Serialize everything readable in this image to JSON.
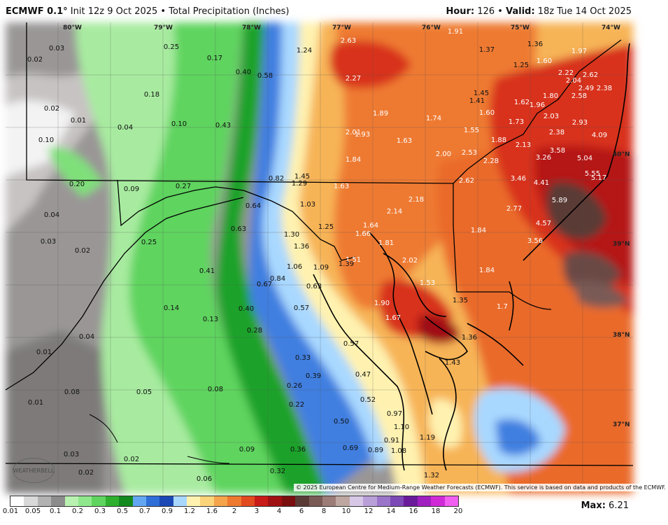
{
  "header": {
    "model": "ECMWF 0.1°",
    "subtitle": "Init 12z 9 Oct 2025 • Total Precipitation (Inches)",
    "hour_label": "Hour:",
    "hour_value": "126",
    "valid_label": "Valid:",
    "valid_value": "18z Tue 14 Oct 2025"
  },
  "longitude_labels": [
    "80°W",
    "79°W",
    "78°W",
    "77°W",
    "76°W",
    "75°W",
    "74°W"
  ],
  "latitude_labels": [
    "40°N",
    "39°N",
    "38°N",
    "37°N"
  ],
  "values": [
    {
      "v": "0.25"
    },
    {
      "v": "0.03"
    },
    {
      "v": "0.02"
    },
    {
      "v": "0.17"
    },
    {
      "v": "0.40"
    },
    {
      "v": "0.58"
    },
    {
      "v": "1.24"
    },
    {
      "v": "2.63"
    },
    {
      "v": "1.91"
    },
    {
      "v": "1.37"
    },
    {
      "v": "1.36"
    },
    {
      "v": "1.97"
    },
    {
      "v": "0.18"
    },
    {
      "v": "2.27"
    },
    {
      "v": "1.25"
    },
    {
      "v": "1.60"
    },
    {
      "v": "2.22"
    },
    {
      "v": "2.62"
    },
    {
      "v": "2.04"
    },
    {
      "v": "2.49"
    },
    {
      "v": "2.38"
    },
    {
      "v": "0.02"
    },
    {
      "v": "1.45"
    },
    {
      "v": "1.41"
    },
    {
      "v": "1.62"
    },
    {
      "v": "1.80"
    },
    {
      "v": "2.58"
    },
    {
      "v": "0.01"
    },
    {
      "v": "0.04"
    },
    {
      "v": "0.10"
    },
    {
      "v": "0.43"
    },
    {
      "v": "1.89"
    },
    {
      "v": "1.74"
    },
    {
      "v": "1.60"
    },
    {
      "v": "1.96"
    },
    {
      "v": "1.73"
    },
    {
      "v": "2.03"
    },
    {
      "v": "2.93"
    },
    {
      "v": "1.55"
    },
    {
      "v": "2.38"
    },
    {
      "v": "2.01"
    },
    {
      "v": "1.93"
    },
    {
      "v": "1.63"
    },
    {
      "v": "1.88"
    },
    {
      "v": "4.09"
    },
    {
      "v": "0.10"
    },
    {
      "v": "2.13"
    },
    {
      "v": "2.00"
    },
    {
      "v": "2.53"
    },
    {
      "v": "3.58"
    },
    {
      "v": "3.26"
    },
    {
      "v": "5.04"
    },
    {
      "v": "1.84"
    },
    {
      "v": "2.28"
    },
    {
      "v": "5.55"
    },
    {
      "v": "0.82"
    },
    {
      "v": "1.45"
    },
    {
      "v": "5.17"
    },
    {
      "v": "0.20"
    },
    {
      "v": "0.09"
    },
    {
      "v": "0.27"
    },
    {
      "v": "1.29"
    },
    {
      "v": "1.63"
    },
    {
      "v": "2.62"
    },
    {
      "v": "3.46"
    },
    {
      "v": "4.41"
    },
    {
      "v": "1.03"
    },
    {
      "v": "2.18"
    },
    {
      "v": "2.77"
    },
    {
      "v": "5.89"
    },
    {
      "v": "0.64"
    },
    {
      "v": "0.04"
    },
    {
      "v": "2.14"
    },
    {
      "v": "1.25"
    },
    {
      "v": "1.64"
    },
    {
      "v": "4.57"
    },
    {
      "v": "0.63"
    },
    {
      "v": "1.30"
    },
    {
      "v": "1.66"
    },
    {
      "v": "1.84"
    },
    {
      "v": "0.03"
    },
    {
      "v": "0.25"
    },
    {
      "v": "1.36"
    },
    {
      "v": "1.81"
    },
    {
      "v": "3.56"
    },
    {
      "v": "0.02"
    },
    {
      "v": "1.51"
    },
    {
      "v": "2.02"
    },
    {
      "v": "1.39"
    },
    {
      "v": "1.06"
    },
    {
      "v": "1.09"
    },
    {
      "v": "0.41"
    },
    {
      "v": "1.84"
    },
    {
      "v": "0.84"
    },
    {
      "v": "1.53"
    },
    {
      "v": "0.67"
    },
    {
      "v": "0.63"
    },
    {
      "v": "1.35"
    },
    {
      "v": "1.90"
    },
    {
      "v": "0.14"
    },
    {
      "v": "0.40"
    },
    {
      "v": "0.57"
    },
    {
      "v": "1.7"
    },
    {
      "v": "0.13"
    },
    {
      "v": "1.67"
    },
    {
      "v": "0.28"
    },
    {
      "v": "0.04"
    },
    {
      "v": "1.36"
    },
    {
      "v": "0.57"
    },
    {
      "v": "0.01"
    },
    {
      "v": "1.43"
    },
    {
      "v": "0.33"
    },
    {
      "v": "0.47"
    },
    {
      "v": "0.39"
    },
    {
      "v": "0.26"
    },
    {
      "v": "0.08"
    },
    {
      "v": "0.08"
    },
    {
      "v": "0.05"
    },
    {
      "v": "0.01"
    },
    {
      "v": "0.52"
    },
    {
      "v": "0.22"
    },
    {
      "v": "0.97"
    },
    {
      "v": "0.50"
    },
    {
      "v": "1.10"
    },
    {
      "v": "1.19"
    },
    {
      "v": "0.91"
    },
    {
      "v": "0.69"
    },
    {
      "v": "0.89"
    },
    {
      "v": "1.08"
    },
    {
      "v": "0.36"
    },
    {
      "v": "0.03"
    },
    {
      "v": "0.09"
    },
    {
      "v": "0.02"
    },
    {
      "v": "1.32"
    },
    {
      "v": "0.02"
    },
    {
      "v": "0.06"
    },
    {
      "v": "0.32"
    }
  ],
  "logo_text": "WEATHERBELL",
  "credit": "© 2025 European Centre for Medium-Range Weather Forecasts (ECMWF). This service is based on data and products of the ECMWF.",
  "legend": {
    "ticks": [
      "0.01",
      "0.05",
      "0.1",
      "0.2",
      "0.3",
      "0.5",
      "0.7",
      "0.9",
      "1.2",
      "1.6",
      "2",
      "3",
      "4",
      "6",
      "8",
      "10",
      "12",
      "14",
      "16",
      "18",
      "20"
    ],
    "colors": [
      "#ffffff",
      "#d9d9d9",
      "#b3b3b3",
      "#8c8c8c",
      "#b9f2b0",
      "#8fe88c",
      "#5fd45f",
      "#2eb02e",
      "#128a1e",
      "#63a7f2",
      "#2f6fd8",
      "#1b48b4",
      "#a9d8ff",
      "#fff2b0",
      "#fbd47a",
      "#f5a44c",
      "#ee7a30",
      "#e24a1f",
      "#c81a16",
      "#a00f12",
      "#7a0d0e",
      "#5a3a35",
      "#7a5a54",
      "#9b7c76",
      "#bfa7a1",
      "#d7c8e8",
      "#b9a0d8",
      "#9a74c8",
      "#7d49b6",
      "#6a1b9a",
      "#a020c0",
      "#d02ad8",
      "#f05ff0"
    ],
    "max_label": "Max:",
    "max_value": "6.21"
  }
}
